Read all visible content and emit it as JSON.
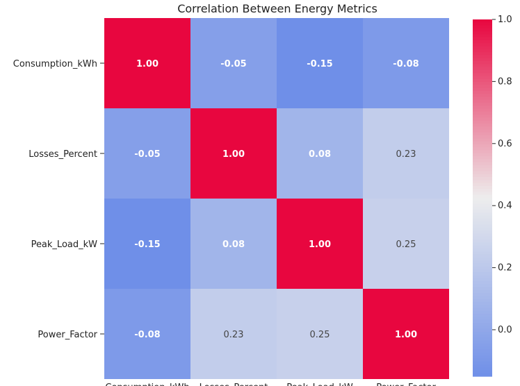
{
  "chart_data": {
    "type": "heatmap",
    "title": "Correlation Between Energy Metrics",
    "row_labels": [
      "Consumption_kWh",
      "Losses_Percent",
      "Peak_Load_kW",
      "Power_Factor"
    ],
    "col_labels": [
      "Consumption_kWh",
      "Losses_Percent",
      "Peak_Load_kW",
      "Power_Factor"
    ],
    "values": [
      [
        1.0,
        -0.05,
        -0.15,
        -0.08
      ],
      [
        -0.05,
        1.0,
        0.08,
        0.23
      ],
      [
        -0.15,
        0.08,
        1.0,
        0.25
      ],
      [
        -0.08,
        0.23,
        0.25,
        1.0
      ]
    ],
    "value_labels": [
      [
        "1.00",
        "-0.05",
        "-0.15",
        "-0.08"
      ],
      [
        "-0.05",
        "1.00",
        "0.08",
        "0.23"
      ],
      [
        "-0.15",
        "0.08",
        "1.00",
        "0.25"
      ],
      [
        "-0.08",
        "0.23",
        "0.25",
        "1.00"
      ]
    ],
    "colorbar": {
      "min": -0.15,
      "max": 1.0,
      "ticks": [
        0.0,
        0.2,
        0.4,
        0.6,
        0.8,
        1.0
      ],
      "tick_labels": [
        "0.0",
        "0.2",
        "0.4",
        "0.6",
        "0.8",
        "1.0"
      ],
      "colormap": "coolwarm",
      "colors": {
        "low": "#6f8fe8",
        "mid": "#ededed",
        "high": "#e8063f"
      }
    }
  }
}
